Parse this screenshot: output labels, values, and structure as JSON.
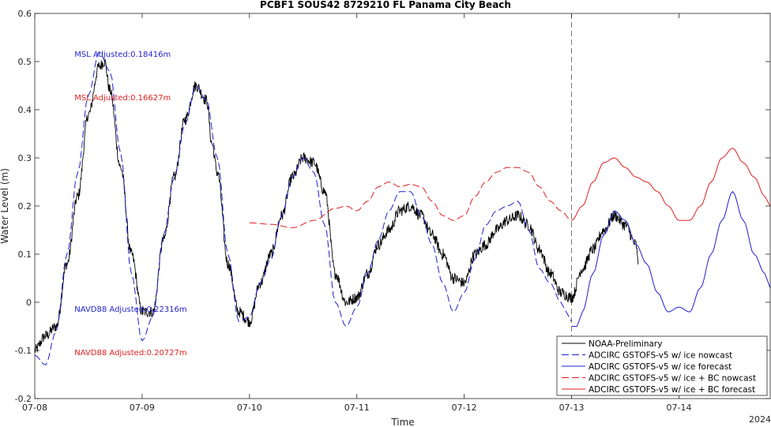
{
  "chart_data": {
    "type": "line",
    "title": "PCBF1 SOUS42 8729210 FL Panama City Beach",
    "xlabel": "Time",
    "ylabel": "Water Level (m)",
    "x_unit": "days since 07-08 00:00 (2024)",
    "xlim": [
      0,
      6.85
    ],
    "ylim": [
      -0.2,
      0.6
    ],
    "x_ticks": [
      0,
      1,
      2,
      3,
      4,
      5,
      6
    ],
    "x_tick_labels": [
      "07-08",
      "07-09",
      "07-10",
      "07-11",
      "07-12",
      "07-13",
      "07-14"
    ],
    "y_ticks": [
      -0.2,
      -0.1,
      0,
      0.1,
      0.2,
      0.3,
      0.4,
      0.5,
      0.6
    ],
    "y_tick_labels": [
      "-0.2",
      "-0.1",
      "0",
      "0.1",
      "0.2",
      "0.3",
      "0.4",
      "0.5",
      "0.6"
    ],
    "year_label": "2024",
    "nowcast_divider_x": 5.0,
    "grid": false,
    "legend_position": "bottom-right",
    "annotations": [
      {
        "text": "MSL Adjusted:0.18416m",
        "x": 0.37,
        "y": 0.51,
        "color": "#1f1fd0"
      },
      {
        "text": "MSL Adjusted:0.16627m",
        "x": 0.37,
        "y": 0.42,
        "color": "#e01f1f"
      },
      {
        "text": "NAVD88 Adjusted:0.22316m",
        "x": 0.37,
        "y": -0.02,
        "color": "#1f1fd0"
      },
      {
        "text": "NAVD88 Adjusted:0.20727m",
        "x": 0.37,
        "y": -0.11,
        "color": "#e01f1f"
      }
    ],
    "series": [
      {
        "name": "NOAA-Preliminary",
        "color": "#000000",
        "dash": "solid",
        "width": 0.9,
        "noise": 0.012,
        "x": [
          0.0,
          0.1,
          0.2,
          0.3,
          0.4,
          0.5,
          0.6,
          0.65,
          0.7,
          0.8,
          0.9,
          1.0,
          1.1,
          1.2,
          1.3,
          1.4,
          1.5,
          1.6,
          1.65,
          1.7,
          1.8,
          1.9,
          2.0,
          2.1,
          2.2,
          2.3,
          2.4,
          2.5,
          2.6,
          2.7,
          2.8,
          2.9,
          3.0,
          3.1,
          3.2,
          3.3,
          3.4,
          3.5,
          3.6,
          3.7,
          3.8,
          3.9,
          4.0,
          4.1,
          4.2,
          4.3,
          4.4,
          4.5,
          4.6,
          4.7,
          4.8,
          4.9,
          5.0,
          5.1,
          5.2,
          5.3,
          5.4,
          5.5,
          5.6,
          5.62
        ],
        "values": [
          -0.1,
          -0.07,
          -0.05,
          0.08,
          0.22,
          0.39,
          0.49,
          0.5,
          0.44,
          0.28,
          0.1,
          -0.02,
          -0.02,
          0.13,
          0.26,
          0.38,
          0.45,
          0.42,
          0.33,
          0.27,
          0.08,
          -0.02,
          -0.04,
          0.04,
          0.1,
          0.18,
          0.26,
          0.3,
          0.29,
          0.23,
          0.06,
          0.0,
          0.01,
          0.06,
          0.12,
          0.15,
          0.19,
          0.2,
          0.18,
          0.14,
          0.1,
          0.05,
          0.04,
          0.1,
          0.12,
          0.15,
          0.17,
          0.18,
          0.16,
          0.11,
          0.06,
          0.02,
          0.01,
          0.07,
          0.11,
          0.15,
          0.18,
          0.16,
          0.12,
          0.08
        ]
      },
      {
        "name": "ADCIRC GSTOFS-v5 w/ ice nowcast",
        "color": "#1f1fd0",
        "dash": "long-dash",
        "width": 1.0,
        "x": [
          0.0,
          0.1,
          0.2,
          0.3,
          0.4,
          0.5,
          0.6,
          0.7,
          0.8,
          0.9,
          1.0,
          1.1,
          1.2,
          1.3,
          1.4,
          1.5,
          1.6,
          1.7,
          1.8,
          1.9,
          2.0,
          2.1,
          2.2,
          2.3,
          2.4,
          2.5,
          2.6,
          2.7,
          2.8,
          2.9,
          3.0,
          3.1,
          3.2,
          3.3,
          3.4,
          3.5,
          3.6,
          3.7,
          3.8,
          3.9,
          4.0,
          4.1,
          4.2,
          4.3,
          4.4,
          4.5,
          4.6,
          4.7,
          4.8,
          4.9,
          4.95,
          5.0
        ],
        "values": [
          -0.11,
          -0.13,
          -0.06,
          0.1,
          0.27,
          0.43,
          0.52,
          0.48,
          0.31,
          0.06,
          -0.08,
          -0.03,
          0.14,
          0.26,
          0.37,
          0.45,
          0.42,
          0.3,
          0.1,
          -0.04,
          -0.03,
          0.04,
          0.09,
          0.18,
          0.26,
          0.3,
          0.27,
          0.16,
          0.0,
          -0.05,
          -0.01,
          0.06,
          0.13,
          0.19,
          0.23,
          0.23,
          0.18,
          0.12,
          0.04,
          -0.02,
          0.02,
          0.09,
          0.16,
          0.19,
          0.2,
          0.21,
          0.15,
          0.07,
          0.04,
          0.0,
          -0.02,
          -0.04
        ]
      },
      {
        "name": "ADCIRC GSTOFS-v5 w/ ice forecast",
        "color": "#1f1fd0",
        "dash": "solid",
        "width": 1.0,
        "x": [
          5.0,
          5.05,
          5.1,
          5.2,
          5.3,
          5.4,
          5.5,
          5.6,
          5.7,
          5.8,
          5.9,
          6.0,
          6.1,
          6.2,
          6.3,
          6.4,
          6.5,
          6.6,
          6.7,
          6.8,
          6.85
        ],
        "values": [
          -0.05,
          -0.05,
          -0.02,
          0.06,
          0.14,
          0.19,
          0.17,
          0.12,
          0.08,
          0.02,
          -0.02,
          -0.01,
          -0.02,
          0.03,
          0.1,
          0.17,
          0.23,
          0.17,
          0.1,
          0.06,
          0.03
        ]
      },
      {
        "name": "ADCIRC GSTOFS-v5 w/ ice + BC nowcast",
        "color": "#e01f1f",
        "dash": "long-dash",
        "width": 1.0,
        "x": [
          2.0,
          2.2,
          2.4,
          2.6,
          2.8,
          2.9,
          3.0,
          3.1,
          3.2,
          3.3,
          3.4,
          3.5,
          3.6,
          3.7,
          3.8,
          3.9,
          4.0,
          4.1,
          4.2,
          4.3,
          4.4,
          4.5,
          4.6,
          4.7,
          4.8,
          4.9,
          5.0
        ],
        "values": [
          0.165,
          0.162,
          0.155,
          0.17,
          0.195,
          0.2,
          0.19,
          0.21,
          0.24,
          0.25,
          0.24,
          0.245,
          0.24,
          0.21,
          0.18,
          0.17,
          0.18,
          0.22,
          0.25,
          0.27,
          0.28,
          0.28,
          0.27,
          0.24,
          0.21,
          0.19,
          0.17
        ]
      },
      {
        "name": "ADCIRC GSTOFS-v5 w/ ice + BC forecast",
        "color": "#e01f1f",
        "dash": "solid",
        "width": 1.0,
        "x": [
          5.0,
          5.1,
          5.2,
          5.3,
          5.4,
          5.5,
          5.6,
          5.7,
          5.8,
          5.9,
          6.0,
          6.1,
          6.2,
          6.3,
          6.4,
          6.5,
          6.6,
          6.7,
          6.8,
          6.85
        ],
        "values": [
          0.17,
          0.2,
          0.25,
          0.29,
          0.3,
          0.28,
          0.26,
          0.25,
          0.23,
          0.2,
          0.17,
          0.17,
          0.2,
          0.25,
          0.3,
          0.32,
          0.29,
          0.26,
          0.22,
          0.2
        ]
      }
    ]
  }
}
